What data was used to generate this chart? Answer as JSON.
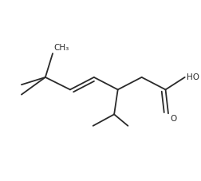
{
  "background_color": "#ffffff",
  "line_color": "#2a2a2a",
  "line_width": 1.3,
  "figsize": [
    2.53,
    2.27
  ],
  "dpi": 100,
  "atoms": {
    "CH3": {
      "text": "CH₃",
      "fontsize": 7.5
    },
    "HO": {
      "text": "HO",
      "fontsize": 7.5
    },
    "O": {
      "text": "O",
      "fontsize": 7.5
    }
  }
}
